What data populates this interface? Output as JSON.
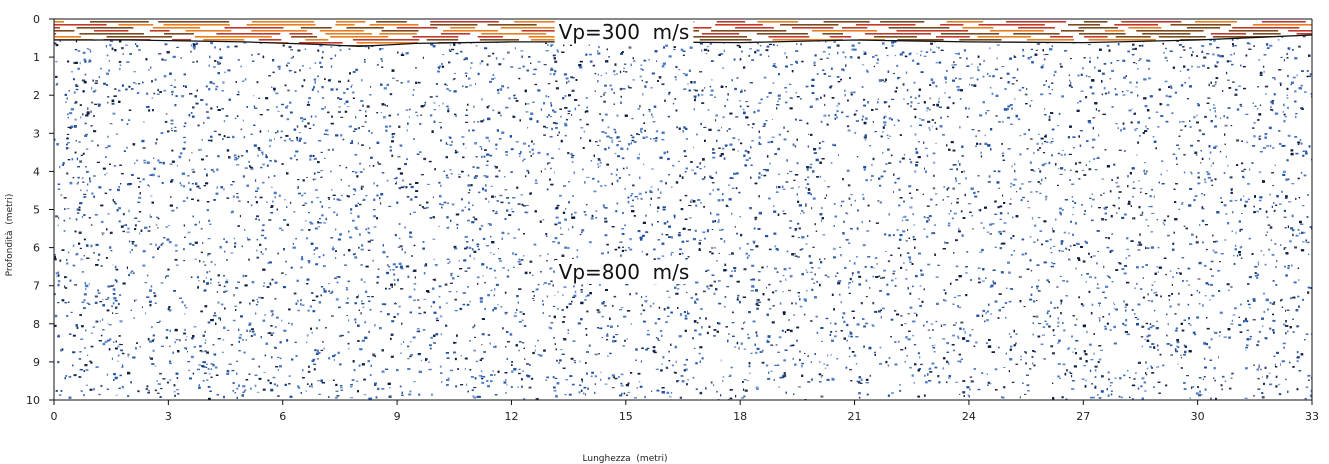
{
  "chart_data": {
    "type": "other",
    "title": "",
    "xlabel": "Lunghezza  (metri)",
    "ylabel": "Profondità  (metri)",
    "xlim": [
      0,
      33
    ],
    "ylim": [
      0,
      10
    ],
    "y_inverted": true,
    "x_ticks": [
      "0",
      "3",
      "6",
      "9",
      "12",
      "15",
      "18",
      "21",
      "24",
      "27",
      "30",
      "33"
    ],
    "y_ticks": [
      "0",
      "1",
      "2",
      "3",
      "4",
      "5",
      "6",
      "7",
      "8",
      "9",
      "10"
    ],
    "interface_depth": [
      {
        "x": 0,
        "depth": 0.55
      },
      {
        "x": 2,
        "depth": 0.55
      },
      {
        "x": 5,
        "depth": 0.6
      },
      {
        "x": 7,
        "depth": 0.67
      },
      {
        "x": 8,
        "depth": 0.72
      },
      {
        "x": 9.5,
        "depth": 0.64
      },
      {
        "x": 12,
        "depth": 0.6
      },
      {
        "x": 15,
        "depth": 0.6
      },
      {
        "x": 18,
        "depth": 0.62
      },
      {
        "x": 21,
        "depth": 0.55
      },
      {
        "x": 24,
        "depth": 0.6
      },
      {
        "x": 27,
        "depth": 0.62
      },
      {
        "x": 30,
        "depth": 0.55
      },
      {
        "x": 33,
        "depth": 0.42
      }
    ],
    "layers": [
      {
        "label": "Vp=300  m/s",
        "colors": [
          "#c0392b",
          "#e67e22",
          "#7a4a1e"
        ]
      },
      {
        "label": "Vp=800  m/s",
        "colors": [
          "#1f4f9e",
          "#4a78c2",
          "#0d1b3d"
        ]
      }
    ]
  }
}
